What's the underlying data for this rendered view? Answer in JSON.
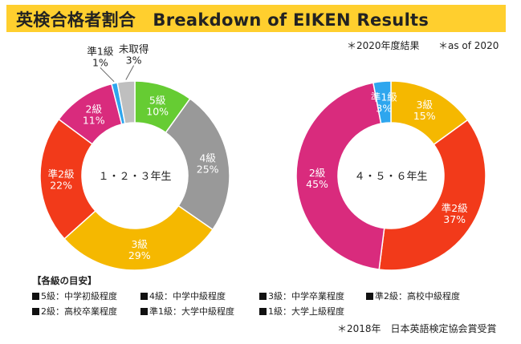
{
  "title": "英検合格者割合　Breakdown of EIKEN Results",
  "notes": {
    "year": "＊2020年度結果",
    "as_of": "＊as of 2020",
    "source": "＊2018年　日本英語検定協会賞受賞"
  },
  "colors": {
    "title_bg": "#ffcf2e",
    "pre1": "#2ea6ee",
    "unobtained": "#bfbfbf",
    "grade5": "#66cc33",
    "grade4": "#999999",
    "grade3": "#f5b800",
    "pre2": "#f23a1a",
    "grade2": "#d92b7d"
  },
  "chart_data": [
    {
      "type": "pie",
      "donut": true,
      "center_label": "１・２・３年生",
      "slices": [
        {
          "grade": "5級",
          "label": "5級\n10%",
          "value": 10,
          "color": "#66cc33",
          "text_color": "#ffffff"
        },
        {
          "grade": "4級",
          "label": "4級\n25%",
          "value": 25,
          "color": "#999999",
          "text_color": "#ffffff"
        },
        {
          "grade": "3級",
          "label": "3級\n29%",
          "value": 29,
          "color": "#f5b800",
          "text_color": "#ffffff"
        },
        {
          "grade": "準2級",
          "label": "準2級\n22%",
          "value": 22,
          "color": "#f23a1a",
          "text_color": "#ffffff"
        },
        {
          "grade": "2級",
          "label": "2級\n11%",
          "value": 11,
          "color": "#d92b7d",
          "text_color": "#ffffff"
        },
        {
          "grade": "準1級",
          "label": "準1級\n1%",
          "value": 1,
          "color": "#2ea6ee",
          "text_color": "#222222",
          "outside": true
        },
        {
          "grade": "未取得",
          "label": "未取得\n3%",
          "value": 3,
          "color": "#bfbfbf",
          "text_color": "#222222",
          "outside": true
        }
      ]
    },
    {
      "type": "pie",
      "donut": true,
      "center_label": "４・５・６年生",
      "slices": [
        {
          "grade": "3級",
          "label": "3級\n15%",
          "value": 15,
          "color": "#f5b800",
          "text_color": "#ffffff"
        },
        {
          "grade": "準2級",
          "label": "準2級\n37%",
          "value": 37,
          "color": "#f23a1a",
          "text_color": "#ffffff"
        },
        {
          "grade": "2級",
          "label": "2級\n45%",
          "value": 45,
          "color": "#d92b7d",
          "text_color": "#ffffff"
        },
        {
          "grade": "準1級",
          "label": "準1級\n3%",
          "value": 3,
          "color": "#2ea6ee",
          "text_color": "#ffffff"
        }
      ]
    }
  ],
  "legend": {
    "title": "【各級の目安】",
    "items": [
      "5級：中学初級程度",
      "4級：中学中級程度",
      "3級：中学卒業程度",
      "準2級：高校中級程度",
      "2級：高校卒業程度",
      "準1級：大学中級程度",
      "1級：大学上級程度"
    ]
  }
}
